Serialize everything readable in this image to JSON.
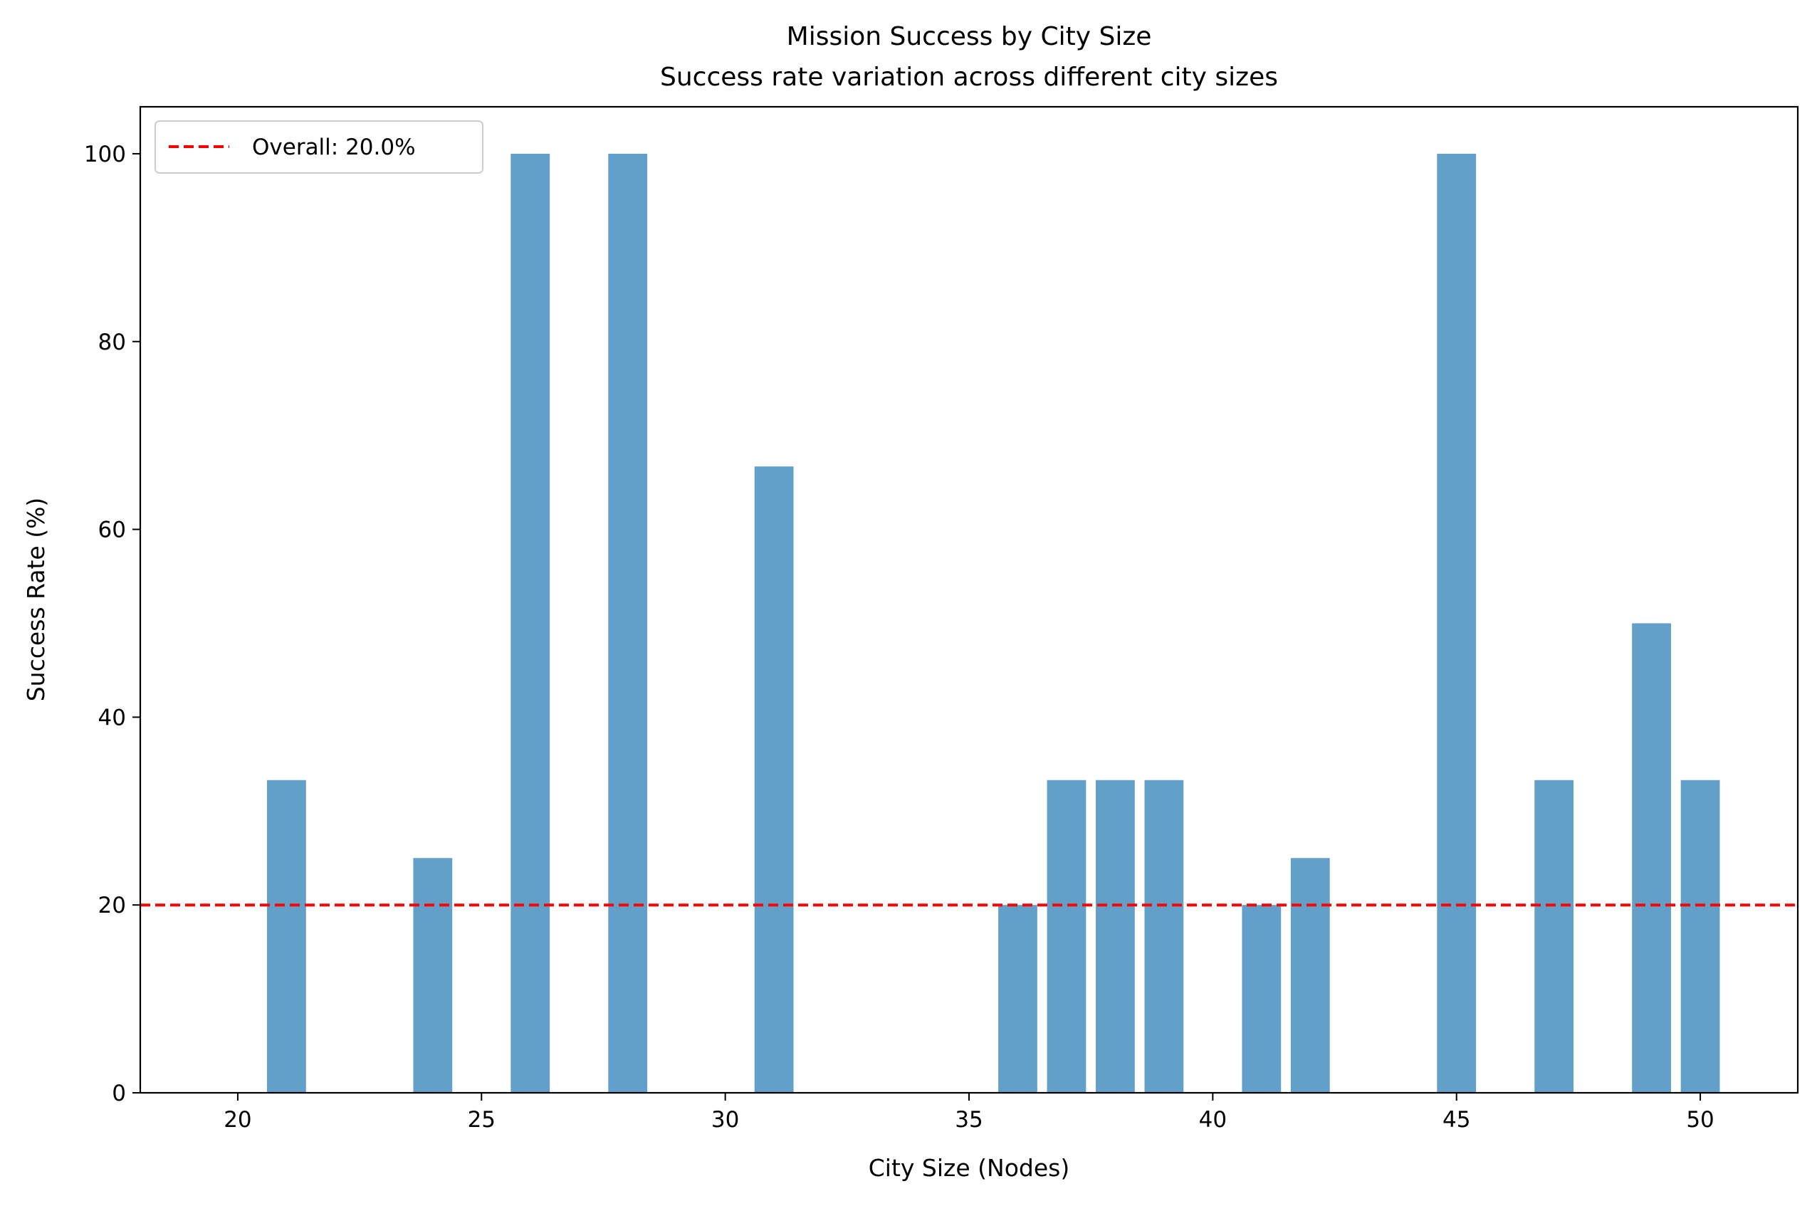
{
  "chart_data": {
    "type": "bar",
    "title": "Mission Success by City Size",
    "subtitle": "Success rate variation across different city sizes",
    "xlabel": "City Size (Nodes)",
    "ylabel": "Success Rate (%)",
    "x": [
      21,
      24,
      26,
      28,
      31,
      36,
      37,
      38,
      39,
      41,
      42,
      45,
      47,
      49,
      50
    ],
    "values": [
      33.3,
      25,
      100,
      100,
      66.7,
      20,
      33.3,
      33.3,
      33.3,
      20,
      25,
      100,
      33.3,
      50,
      33.3
    ],
    "xlim": [
      18,
      52
    ],
    "ylim": [
      0,
      105
    ],
    "xticks": [
      20,
      25,
      30,
      35,
      40,
      45,
      50
    ],
    "yticks": [
      0,
      20,
      40,
      60,
      80,
      100
    ],
    "bar_width": 0.8,
    "bar_color": "#62a0ca",
    "reference_line": {
      "value": 20.0,
      "label": "Overall: 20.0%",
      "color": "#ff0000",
      "style": "dashed"
    },
    "legend_position": "upper-left",
    "grid": false
  }
}
